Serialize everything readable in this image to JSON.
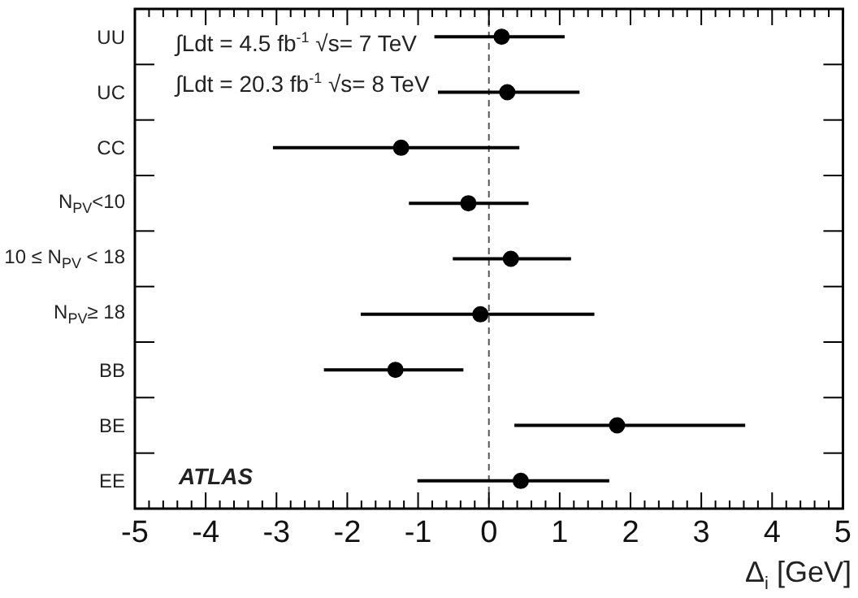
{
  "chart_data": {
    "type": "scatter",
    "orientation": "horizontal",
    "categories": [
      "UU",
      "UC",
      "CC",
      "N$_{PV}$<10",
      "10 ≤ N$_{PV}$ < 18",
      "N$_{PV}$≥ 18",
      "BB",
      "BE",
      "EE"
    ],
    "values": [
      0.18,
      0.26,
      -1.24,
      -0.29,
      0.31,
      -0.12,
      -1.32,
      1.81,
      0.45
    ],
    "errors": [
      [
        -0.77,
        1.07
      ],
      [
        -0.72,
        1.28
      ],
      [
        -3.05,
        0.43
      ],
      [
        -1.13,
        0.56
      ],
      [
        -0.51,
        1.16
      ],
      [
        -1.81,
        1.49
      ],
      [
        -2.33,
        -0.36
      ],
      [
        0.36,
        3.62
      ],
      [
        -1.01,
        1.7
      ]
    ],
    "color": "#000000",
    "marker": "circle",
    "xlabel": "Δ$_{i}$ [GeV]",
    "xlim": [
      -5,
      5
    ],
    "xticks": [
      -5,
      {
        "value": -4.8,
        "label": null
      },
      {
        "value": -4.6,
        "label": null
      },
      {
        "value": -4.4,
        "label": null
      },
      {
        "value": -4.2,
        "label": null
      },
      -4,
      {
        "value": -3.8,
        "label": null
      },
      {
        "value": -3.6,
        "label": null
      },
      {
        "value": -3.4,
        "label": null
      },
      {
        "value": -3.2,
        "label": null
      },
      -3,
      {
        "value": -2.8,
        "label": null
      },
      {
        "value": -2.6,
        "label": null
      },
      {
        "value": -2.4,
        "label": null
      },
      {
        "value": -2.2,
        "label": null
      },
      -2,
      {
        "value": -1.8,
        "label": null
      },
      {
        "value": -1.6,
        "label": null
      },
      {
        "value": -1.4,
        "label": null
      },
      {
        "value": -1.2,
        "label": null
      },
      -1,
      {
        "value": -0.8,
        "label": null
      },
      {
        "value": -0.6,
        "label": null
      },
      {
        "value": -0.4,
        "label": null
      },
      {
        "value": -0.2,
        "label": null
      },
      0,
      {
        "value": 0.2,
        "label": null
      },
      {
        "value": 0.4,
        "label": null
      },
      {
        "value": 0.6,
        "label": null
      },
      {
        "value": 0.8,
        "label": null
      },
      1,
      {
        "value": 1.2,
        "label": null
      },
      {
        "value": 1.4,
        "label": null
      },
      {
        "value": 1.6,
        "label": null
      },
      {
        "value": 1.8,
        "label": null
      },
      2,
      {
        "value": 2.2,
        "label": null
      },
      {
        "value": 2.4,
        "label": null
      },
      {
        "value": 2.6,
        "label": null
      },
      {
        "value": 2.8,
        "label": null
      },
      3,
      {
        "value": 3.2,
        "label": null
      },
      {
        "value": 3.4,
        "label": null
      },
      {
        "value": 3.6,
        "label": null
      },
      {
        "value": 3.8,
        "label": null
      },
      4,
      {
        "value": 4.2,
        "label": null
      },
      {
        "value": 4.4,
        "label": null
      },
      {
        "value": 4.6,
        "label": null
      },
      {
        "value": 4.8,
        "label": null
      },
      5
    ],
    "ref_lines": [
      {
        "axis": "x",
        "value": 0,
        "label": null,
        "line_style": "dashed",
        "color": "#555555"
      }
    ],
    "annotations": [
      "∫Ldt = 4.5 fb$^{-1}$ √s= 7 TeV",
      "∫Ldt = 20.3 fb$^{-1}$ √s= 8 TeV",
      "ATLAS"
    ],
    "legend": false
  }
}
